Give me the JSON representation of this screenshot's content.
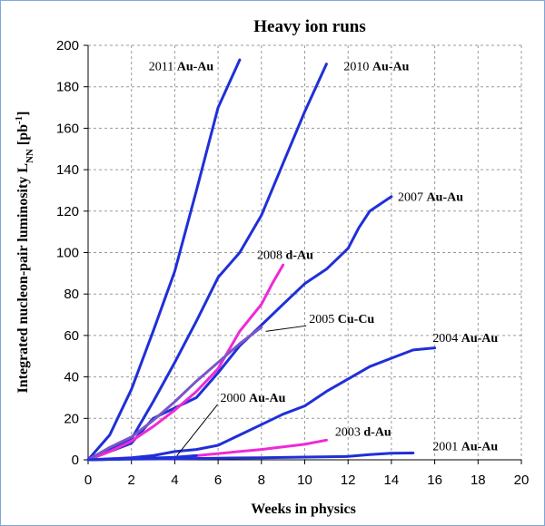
{
  "chart_data": {
    "type": "line",
    "title": "Heavy ion runs",
    "xlabel": "Weeks in physics",
    "ylabel": "Integrated nucleon-pair luminosity L",
    "ylabel_sub": "NN",
    "ylabel_unit": " [pb",
    "ylabel_sup": "-1",
    "ylabel_end": "]",
    "xlim": [
      0,
      20
    ],
    "ylim": [
      0,
      200
    ],
    "xticks": [
      0,
      2,
      4,
      6,
      8,
      10,
      12,
      14,
      16,
      18,
      20
    ],
    "yticks": [
      0,
      20,
      40,
      60,
      80,
      100,
      120,
      140,
      160,
      180,
      200
    ],
    "grid": true,
    "series": [
      {
        "name": "2011 Au-Au",
        "year": "2011",
        "species": "Au-Au",
        "color": "#1f2fd8",
        "x": [
          0,
          1,
          2,
          3,
          4,
          5,
          6,
          7
        ],
        "y": [
          0,
          12,
          34,
          62,
          91,
          130,
          170,
          193
        ]
      },
      {
        "name": "2010 Au-Au",
        "year": "2010",
        "species": "Au-Au",
        "color": "#1f2fd8",
        "x": [
          0,
          1,
          2,
          3,
          4,
          5,
          6,
          7,
          8,
          9,
          10,
          11
        ],
        "y": [
          0,
          5,
          10,
          28,
          47,
          67,
          88,
          100,
          118,
          143,
          168,
          191
        ]
      },
      {
        "name": "2007 Au-Au",
        "year": "2007",
        "species": "Au-Au",
        "color": "#1f2fd8",
        "x": [
          0,
          2,
          3,
          4,
          5,
          6,
          7,
          8,
          9,
          10,
          11,
          12,
          12.5,
          13,
          14
        ],
        "y": [
          0,
          8,
          20,
          25,
          30,
          42,
          55,
          65,
          75,
          85,
          92,
          102,
          112,
          120,
          127
        ]
      },
      {
        "name": "2008 d-Au",
        "year": "2008",
        "species": "d-Au",
        "color": "#ee2ad6",
        "x": [
          0,
          1,
          2,
          3,
          4,
          5,
          6,
          7,
          8,
          8.5,
          9
        ],
        "y": [
          0,
          4,
          9,
          16,
          24,
          33,
          44,
          62,
          75,
          85,
          94
        ]
      },
      {
        "name": "2005 Cu-Cu",
        "year": "2005",
        "species": "Cu-Cu",
        "color": "#7a55c8",
        "x": [
          0,
          1,
          2,
          3,
          4,
          5,
          6,
          7,
          8
        ],
        "y": [
          0,
          6,
          11,
          19,
          28,
          38,
          47,
          56,
          64
        ]
      },
      {
        "name": "2004 Au-Au",
        "year": "2004",
        "species": "Au-Au",
        "color": "#1f2fd8",
        "x": [
          0,
          1,
          2,
          3,
          4,
          5,
          6,
          7,
          8,
          9,
          10,
          11,
          12,
          13,
          14,
          15,
          16
        ],
        "y": [
          0,
          0.5,
          1,
          2,
          4,
          5,
          7,
          12,
          17,
          22,
          26,
          33,
          39,
          45,
          49,
          53,
          54
        ]
      },
      {
        "name": "2003 d-Au",
        "year": "2003",
        "species": "d-Au",
        "color": "#ee2ad6",
        "x": [
          0,
          2,
          4,
          6,
          8,
          10,
          11
        ],
        "y": [
          0,
          0.5,
          1,
          3,
          5,
          7.5,
          9.5
        ]
      },
      {
        "name": "2000 Au-Au",
        "year": "2000",
        "species": "Au-Au",
        "color": "#1f2fd8",
        "x": [
          0,
          2,
          4,
          5
        ],
        "y": [
          0,
          0.5,
          1.2,
          2
        ]
      },
      {
        "name": "2001 Au-Au",
        "year": "2001",
        "species": "Au-Au",
        "color": "#1f2fd8",
        "x": [
          0,
          2,
          4,
          6,
          8,
          10,
          12,
          13,
          14,
          15
        ],
        "y": [
          0,
          0.3,
          0.5,
          0.8,
          1,
          1.3,
          1.6,
          2.5,
          3.2,
          3.3
        ]
      }
    ],
    "labels": [
      {
        "series": 0,
        "anchor_x": 2.8,
        "anchor_y": 188,
        "leader": false
      },
      {
        "series": 1,
        "anchor_x": 11.8,
        "anchor_y": 188,
        "leader": false
      },
      {
        "series": 2,
        "anchor_x": 14.3,
        "anchor_y": 125,
        "leader": false
      },
      {
        "series": 3,
        "anchor_x": 7.8,
        "anchor_y": 97,
        "leader": false
      },
      {
        "series": 4,
        "anchor_x": 10.2,
        "anchor_y": 66,
        "leader": true,
        "leader_to_x": 8.2,
        "leader_to_y": 62
      },
      {
        "series": 5,
        "anchor_x": 15.9,
        "anchor_y": 57,
        "leader": false
      },
      {
        "series": 6,
        "anchor_x": 11.4,
        "anchor_y": 11.5,
        "leader": false
      },
      {
        "series": 7,
        "anchor_x": 6.1,
        "anchor_y": 28,
        "leader": true,
        "leader_to_x": 4.1,
        "leader_to_y": 2
      },
      {
        "series": 8,
        "anchor_x": 15.9,
        "anchor_y": 4.6,
        "leader": false
      }
    ]
  }
}
